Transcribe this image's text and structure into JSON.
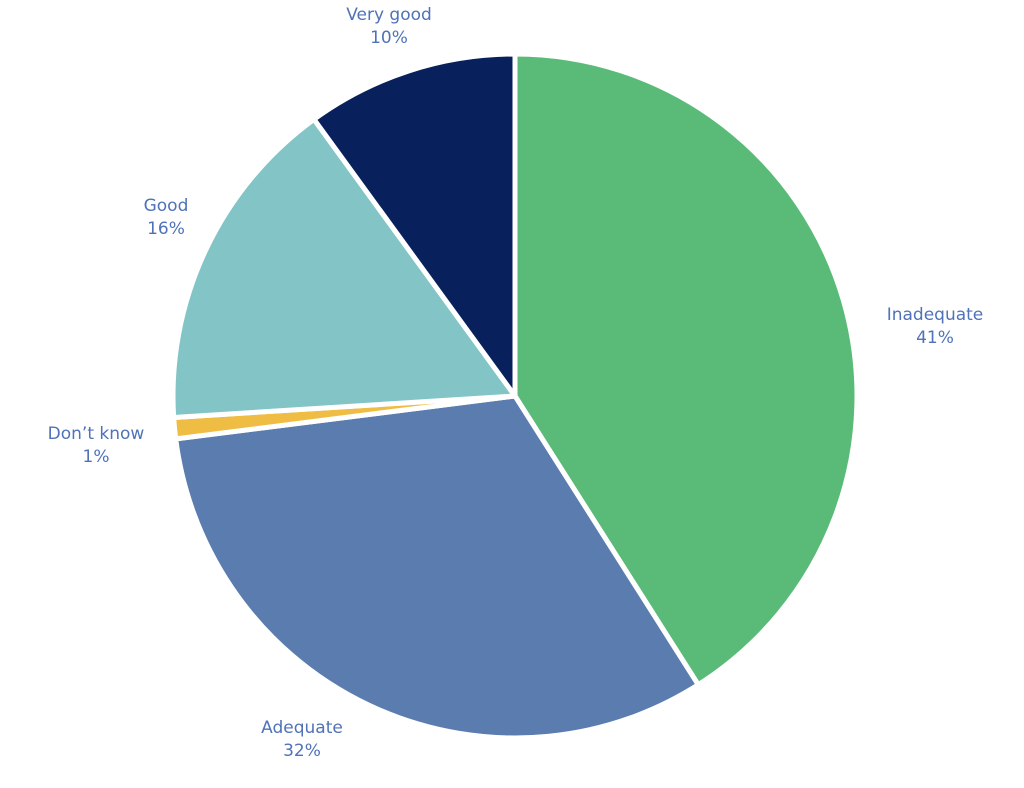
{
  "chart_data": {
    "type": "pie",
    "title": "",
    "start_angle_deg": 0,
    "direction": "clockwise",
    "slices": [
      {
        "label": "Inadequate",
        "value": 41,
        "value_label": "41%",
        "color": "#5abb78"
      },
      {
        "label": "Adequate",
        "value": 32,
        "value_label": "32%",
        "color": "#5a7caf"
      },
      {
        "label": "Don’t know",
        "value": 1,
        "value_label": "1%",
        "color": "#efbd43"
      },
      {
        "label": "Good",
        "value": 16,
        "value_label": "16%",
        "color": "#83c5c7"
      },
      {
        "label": "Very good",
        "value": 10,
        "value_label": "10%",
        "color": "#08205b"
      }
    ],
    "legend": "none",
    "labels_position": "outside"
  }
}
